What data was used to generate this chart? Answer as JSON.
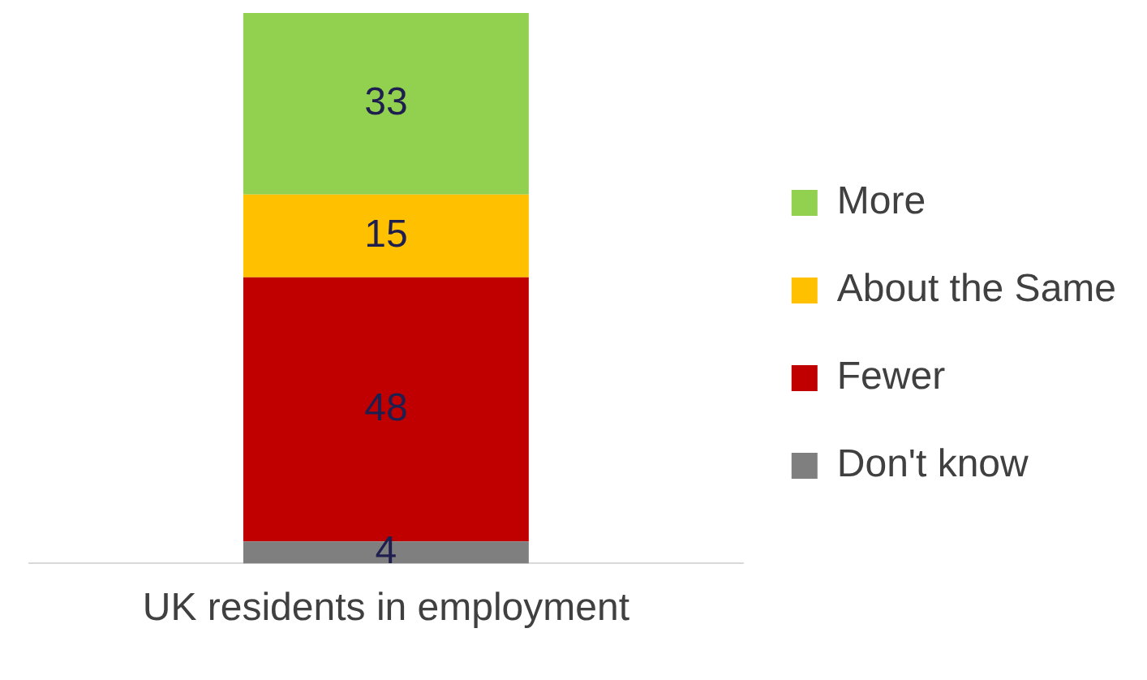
{
  "chart_data": {
    "type": "bar",
    "categories": [
      "UK residents in employment"
    ],
    "stacked": true,
    "series": [
      {
        "name": "Don't know",
        "color": "#7f7f7f",
        "values": [
          4
        ]
      },
      {
        "name": "Fewer",
        "color": "#c00000",
        "values": [
          48
        ]
      },
      {
        "name": "About the Same",
        "color": "#ffc000",
        "values": [
          15
        ]
      },
      {
        "name": "More",
        "color": "#92d050",
        "values": [
          33
        ]
      }
    ],
    "data_labels": true,
    "legend": "right",
    "grid": false,
    "tick_labels": "x"
  }
}
